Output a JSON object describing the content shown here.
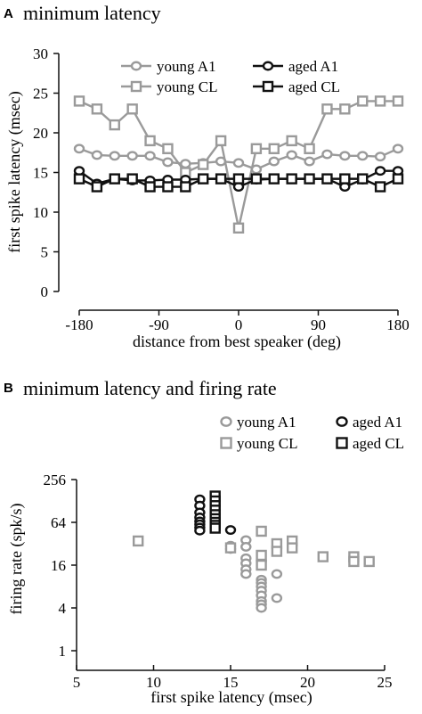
{
  "chart_data": [
    {
      "panel": "A",
      "type": "line",
      "title": "minimum latency",
      "xlabel": "distance from best speaker (deg)",
      "ylabel": "first spike latency (msec)",
      "xlim": [
        -180,
        180
      ],
      "ylim": [
        0,
        30
      ],
      "xticks": [
        "-180",
        "-90",
        "0",
        "90",
        "180"
      ],
      "yticks": [
        "0",
        "5",
        "10",
        "15",
        "20",
        "25",
        "30"
      ],
      "x": [
        -180,
        -160,
        -140,
        -120,
        -100,
        -80,
        -60,
        -40,
        -20,
        0,
        20,
        40,
        60,
        80,
        100,
        120,
        140,
        160,
        180
      ],
      "series": [
        {
          "name": "young A1",
          "color": "#9a9a9a",
          "marker": "circle",
          "values": [
            18.0,
            17.2,
            17.1,
            17.1,
            17.1,
            16.3,
            16.1,
            16.2,
            16.4,
            16.2,
            15.4,
            16.4,
            17.2,
            16.4,
            17.3,
            17.1,
            17.1,
            17.0,
            18.0
          ]
        },
        {
          "name": "young CL",
          "color": "#9a9a9a",
          "marker": "square",
          "values": [
            24.0,
            23.0,
            21.0,
            23.0,
            19.0,
            18.0,
            15.0,
            16.0,
            19.0,
            8.0,
            18.0,
            18.0,
            19.0,
            18.0,
            23.0,
            23.0,
            24.0,
            24.0,
            24.0
          ]
        },
        {
          "name": "aged A1",
          "color": "#111111",
          "marker": "circle",
          "values": [
            15.2,
            13.6,
            14.2,
            14.0,
            14.0,
            14.1,
            14.1,
            14.2,
            14.2,
            13.2,
            14.1,
            14.2,
            14.2,
            14.2,
            14.2,
            13.2,
            14.1,
            15.2,
            15.2
          ]
        },
        {
          "name": "aged CL",
          "color": "#111111",
          "marker": "square",
          "values": [
            14.2,
            13.2,
            14.2,
            14.2,
            13.2,
            13.2,
            13.2,
            14.2,
            14.2,
            14.2,
            14.2,
            14.2,
            14.2,
            14.2,
            14.2,
            14.2,
            14.2,
            13.2,
            14.2
          ]
        }
      ],
      "legend": "top"
    },
    {
      "panel": "B",
      "type": "scatter",
      "title": "minimum latency and firing rate",
      "xlabel": "first spike latency (msec)",
      "ylabel": "firing rate (spk/s)",
      "xlim": [
        5,
        25
      ],
      "ylim": [
        1,
        256
      ],
      "yscale": "log2",
      "xticks": [
        "5",
        "10",
        "15",
        "20",
        "25"
      ],
      "yticks": [
        "1",
        "4",
        "16",
        "64",
        "256"
      ],
      "series": [
        {
          "name": "young A1",
          "color": "#9a9a9a",
          "marker": "circle",
          "points": [
            [
              15,
              30
            ],
            [
              15,
              27
            ],
            [
              16,
              36
            ],
            [
              16,
              29
            ],
            [
              16,
              20
            ],
            [
              16,
              17
            ],
            [
              16,
              14
            ],
            [
              16,
              12
            ],
            [
              17,
              18
            ],
            [
              17,
              10
            ],
            [
              17,
              9
            ],
            [
              17,
              8
            ],
            [
              17,
              7
            ],
            [
              17,
              6
            ],
            [
              17,
              5
            ],
            [
              17,
              4.5
            ],
            [
              17,
              4
            ],
            [
              18,
              12
            ],
            [
              18,
              5.5
            ]
          ]
        },
        {
          "name": "young CL",
          "color": "#9a9a9a",
          "marker": "square",
          "points": [
            [
              9,
              35
            ],
            [
              15,
              28
            ],
            [
              17,
              48
            ],
            [
              17,
              22
            ],
            [
              17,
              16
            ],
            [
              18,
              32
            ],
            [
              18,
              25
            ],
            [
              19,
              35
            ],
            [
              19,
              28
            ],
            [
              21,
              21
            ],
            [
              23,
              21
            ],
            [
              23,
              18
            ],
            [
              24,
              18
            ]
          ]
        },
        {
          "name": "aged A1",
          "color": "#111111",
          "marker": "circle",
          "points": [
            [
              13,
              135
            ],
            [
              13,
              110
            ],
            [
              13,
              88
            ],
            [
              13,
              75
            ],
            [
              13,
              66
            ],
            [
              13,
              60
            ],
            [
              13,
              54
            ],
            [
              13,
              49
            ],
            [
              14,
              72
            ],
            [
              14,
              62
            ],
            [
              14,
              55
            ],
            [
              15,
              50
            ]
          ]
        },
        {
          "name": "aged CL",
          "color": "#111111",
          "marker": "square",
          "points": [
            [
              14,
              150
            ],
            [
              14,
              128
            ],
            [
              14,
              110
            ],
            [
              14,
              95
            ],
            [
              14,
              82
            ],
            [
              14,
              72
            ],
            [
              14,
              64
            ],
            [
              14,
              58
            ],
            [
              14,
              53
            ]
          ]
        }
      ],
      "legend": "top-right"
    }
  ]
}
